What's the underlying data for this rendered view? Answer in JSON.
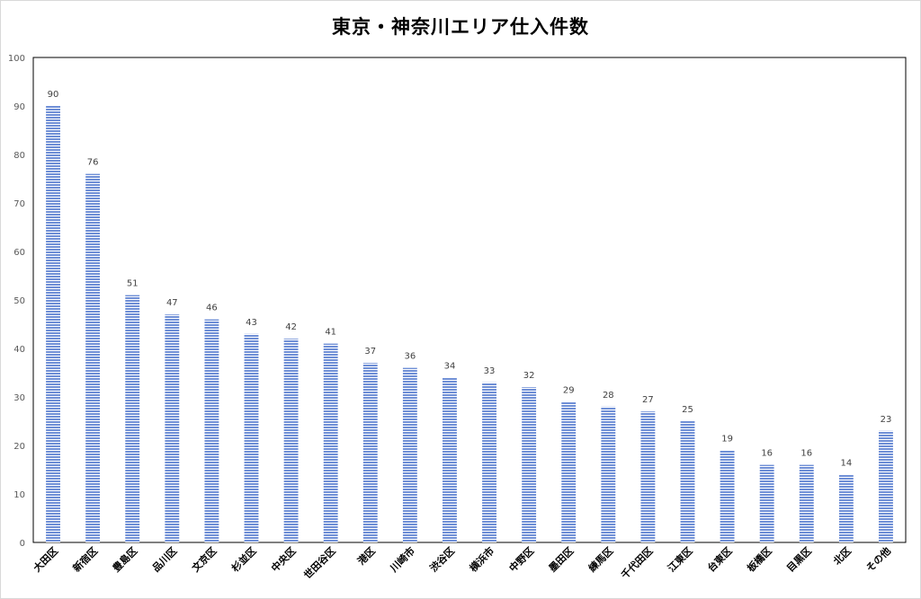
{
  "chart_data": {
    "type": "bar",
    "title": "東京・神奈川エリア仕入件数",
    "xlabel": "",
    "ylabel": "",
    "categories": [
      "大田区",
      "新宿区",
      "豊島区",
      "品川区",
      "文京区",
      "杉並区",
      "中央区",
      "世田谷区",
      "港区",
      "川崎市",
      "渋谷区",
      "横浜市",
      "中野区",
      "墨田区",
      "練馬区",
      "千代田区",
      "江東区",
      "台東区",
      "板橋区",
      "目黒区",
      "北区",
      "その他"
    ],
    "values": [
      90,
      76,
      51,
      47,
      46,
      43,
      42,
      41,
      37,
      36,
      34,
      33,
      32,
      29,
      28,
      27,
      25,
      19,
      16,
      16,
      14,
      23
    ],
    "ylim": [
      0,
      100
    ],
    "yticks": [
      0,
      10,
      20,
      30,
      40,
      50,
      60,
      70,
      80,
      90,
      100
    ],
    "grid": false,
    "legend": "none",
    "bar_color": "#6f8fd6",
    "bar_stripe_color": "#ffffff",
    "data_labels": true
  }
}
